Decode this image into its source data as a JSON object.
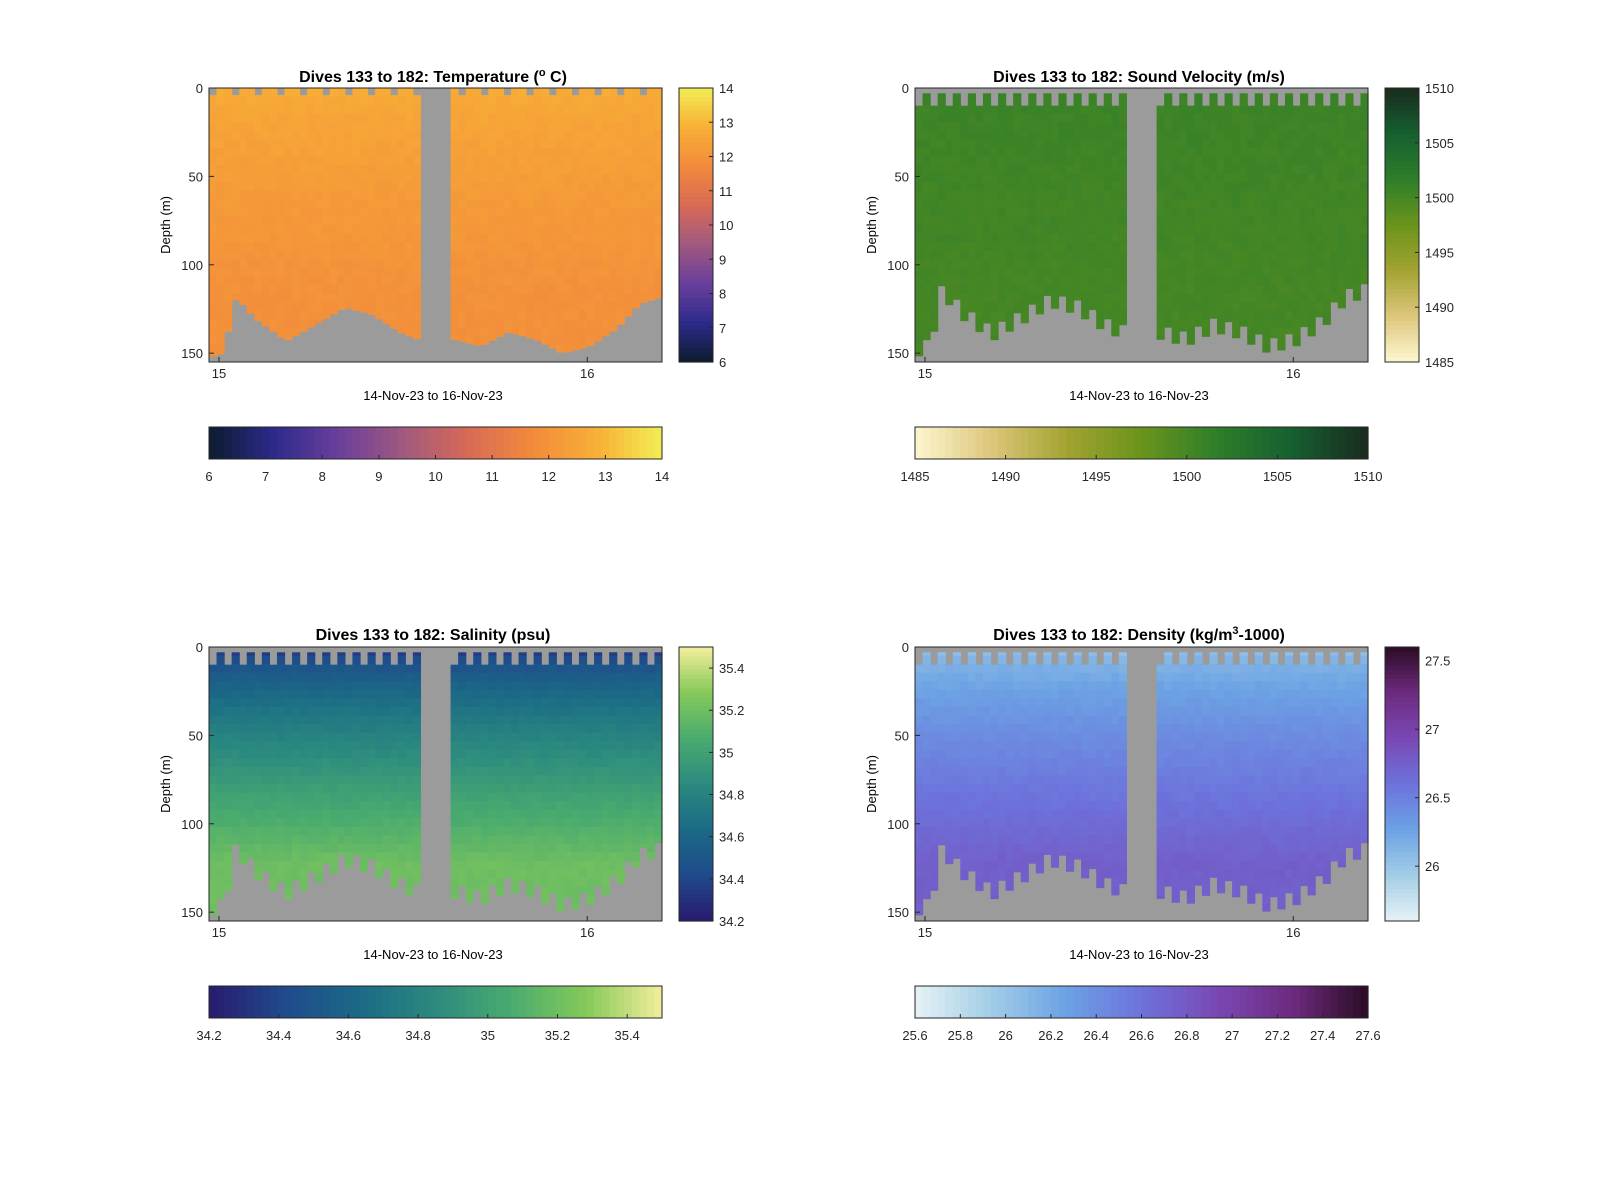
{
  "figure": {
    "panels": [
      {
        "title_pre": "Dives 133 to 182: Temperature (",
        "title_sup": "o",
        "title_post": " C)",
        "ylabel": "Depth (m)",
        "xlabel": "14-Nov-23 to 16-Nov-23"
      },
      {
        "title_pre": "Dives 133 to 182: Sound Velocity (m/s)",
        "title_sup": "",
        "title_post": "",
        "ylabel": "Depth (m)",
        "xlabel": "14-Nov-23 to 16-Nov-23"
      },
      {
        "title_pre": "Dives 133 to 182: Salinity (psu)",
        "title_sup": "",
        "title_post": "",
        "ylabel": "Depth (m)",
        "xlabel": "14-Nov-23 to 16-Nov-23"
      },
      {
        "title_pre": "Dives 133 to 182: Density (kg/m",
        "title_sup": "3",
        "title_post": "-1000)",
        "ylabel": "Depth (m)",
        "xlabel": "14-Nov-23 to 16-Nov-23"
      }
    ]
  },
  "chart_data": [
    {
      "type": "heatmap",
      "variable": "Temperature",
      "x_ticks": [
        "15",
        "16"
      ],
      "y_ticks": [
        "0",
        "50",
        "100",
        "150"
      ],
      "ylim": [
        0,
        155
      ],
      "colorbar_ticks": [
        "6",
        "7",
        "8",
        "9",
        "10",
        "11",
        "12",
        "13",
        "14"
      ],
      "horizontal_colorbar_ticks": [
        "6",
        "7",
        "8",
        "9",
        "10",
        "11",
        "12",
        "13",
        "14"
      ],
      "clim": [
        6,
        14
      ],
      "colormap": [
        "#0d1b2e",
        "#2c2a8a",
        "#6a3f9c",
        "#a0597f",
        "#d86a56",
        "#f28a3b",
        "#f8b036",
        "#f2ee55"
      ],
      "surface_value": 12.7,
      "deep_value": 11.9,
      "missing_color": "#9b9b9b"
    },
    {
      "type": "heatmap",
      "variable": "Sound Velocity",
      "x_ticks": [
        "15",
        "16"
      ],
      "y_ticks": [
        "0",
        "50",
        "100",
        "150"
      ],
      "ylim": [
        0,
        155
      ],
      "colorbar_ticks": [
        "1510",
        "1505",
        "1500",
        "1495",
        "1490",
        "1485"
      ],
      "horizontal_colorbar_ticks": [
        "1485",
        "1490",
        "1495",
        "1500",
        "1505",
        "1510"
      ],
      "clim": [
        1485,
        1510
      ],
      "colormap": [
        "#fdf6cf",
        "#ddc77c",
        "#a3a331",
        "#6a941c",
        "#2e7e2a",
        "#155f30",
        "#1a2b1e"
      ],
      "surface_value": 1500.8,
      "deep_value": 1500.1,
      "missing_color": "#9b9b9b"
    },
    {
      "type": "heatmap",
      "variable": "Salinity",
      "x_ticks": [
        "15",
        "16"
      ],
      "y_ticks": [
        "0",
        "50",
        "100",
        "150"
      ],
      "ylim": [
        0,
        155
      ],
      "colorbar_ticks": [
        "35.4",
        "35.2",
        "35",
        "34.8",
        "34.6",
        "34.4",
        "34.2"
      ],
      "horizontal_colorbar_ticks": [
        "34.2",
        "34.4",
        "34.6",
        "34.8",
        "35",
        "35.2",
        "35.4"
      ],
      "clim": [
        34.2,
        35.5
      ],
      "colormap": [
        "#2a1b6e",
        "#1f4a8c",
        "#1b6a86",
        "#2b8a7f",
        "#4aab6f",
        "#85c959",
        "#f4ee9c"
      ],
      "surface_value": 34.35,
      "deep_value": 35.2,
      "missing_color": "#9b9b9b"
    },
    {
      "type": "heatmap",
      "variable": "Density",
      "x_ticks": [
        "15",
        "16"
      ],
      "y_ticks": [
        "0",
        "50",
        "100",
        "150"
      ],
      "ylim": [
        0,
        155
      ],
      "colorbar_ticks": [
        "27.5",
        "27",
        "26.5",
        "26"
      ],
      "horizontal_colorbar_ticks": [
        "25.6",
        "25.8",
        "26",
        "26.2",
        "26.4",
        "26.6",
        "26.8",
        "27",
        "27.2",
        "27.4",
        "27.6"
      ],
      "clim": [
        25.6,
        27.6
      ],
      "colormap": [
        "#e6f2f5",
        "#a3cde7",
        "#6ca2e4",
        "#6d72dc",
        "#7a48b4",
        "#6d2a7e",
        "#2a0c24"
      ],
      "surface_value": 26.05,
      "deep_value": 26.75,
      "missing_color": "#9b9b9b"
    }
  ]
}
